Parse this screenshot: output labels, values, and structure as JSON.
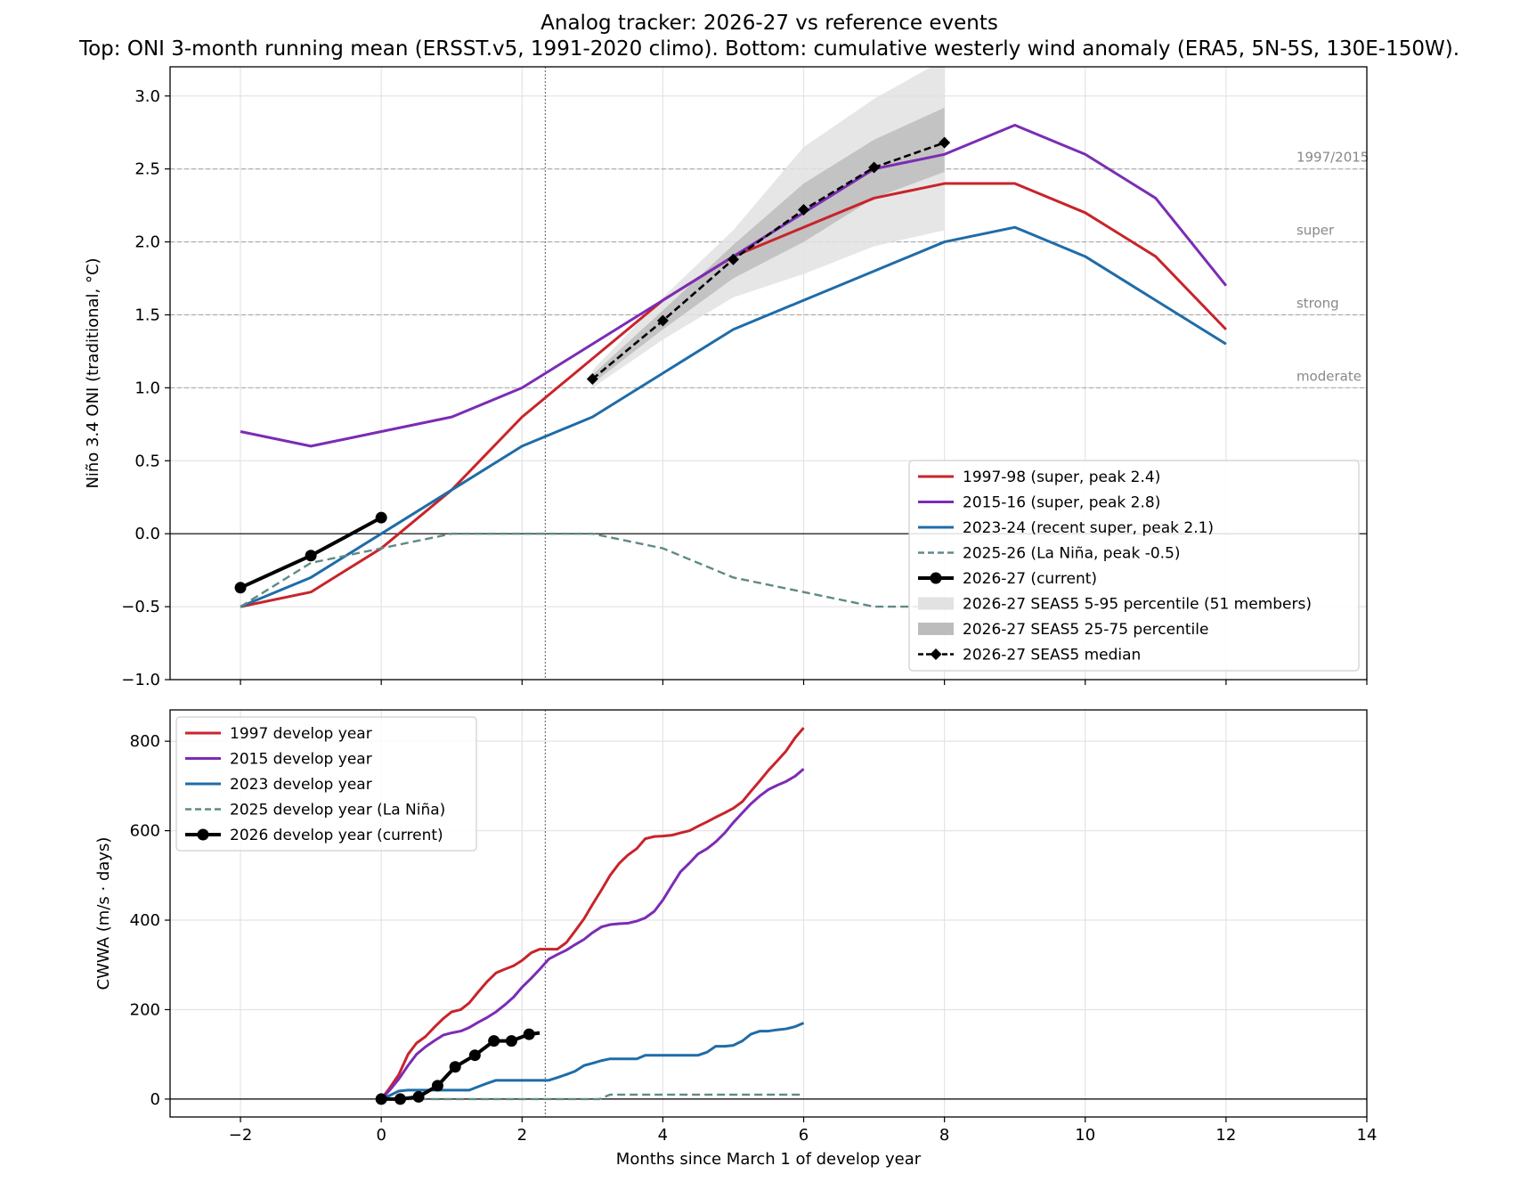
{
  "title": "Analog tracker: 2026-27 vs reference events",
  "subtitle": "Top: ONI 3-month running mean (ERSST.v5, 1991-2020 climo). Bottom: cumulative westerly wind anomaly (ERA5, 5N-5S, 130E-150W).",
  "chart_data": [
    {
      "type": "line",
      "panel": "top",
      "ylabel": "Niño 3.4 ONI (traditional, °C)",
      "xlim": [
        -3,
        14
      ],
      "ylim": [
        -1.0,
        3.2
      ],
      "xticks": [
        -2,
        0,
        2,
        4,
        6,
        8,
        10,
        12,
        14
      ],
      "yticks": [
        -1.0,
        -0.5,
        0.0,
        0.5,
        1.0,
        1.5,
        2.0,
        2.5,
        3.0
      ],
      "grid": true,
      "vline_x": 2.33,
      "thresholds": [
        {
          "y": 1.0,
          "label": "moderate"
        },
        {
          "y": 1.5,
          "label": "strong"
        },
        {
          "y": 2.0,
          "label": "super"
        },
        {
          "y": 2.5,
          "label": "1997/2015"
        }
      ],
      "legend_position": "lower-right",
      "series": [
        {
          "name": "1997-98 (super, peak 2.4)",
          "color": "#c8242b",
          "style": "solid",
          "x": [
            -2,
            -1,
            0,
            1,
            2,
            3,
            4,
            5,
            6,
            7,
            8,
            9,
            10,
            11,
            12
          ],
          "y": [
            -0.5,
            -0.4,
            -0.1,
            0.3,
            0.8,
            1.2,
            1.6,
            1.9,
            2.1,
            2.3,
            2.4,
            2.4,
            2.2,
            1.9,
            1.4
          ]
        },
        {
          "name": "2015-16 (super, peak 2.8)",
          "color": "#7b2cb5",
          "style": "solid",
          "x": [
            -2,
            -1,
            0,
            1,
            2,
            3,
            4,
            5,
            6,
            7,
            8,
            9,
            10,
            11,
            12
          ],
          "y": [
            0.7,
            0.6,
            0.7,
            0.8,
            1.0,
            1.3,
            1.6,
            1.9,
            2.2,
            2.5,
            2.6,
            2.8,
            2.6,
            2.3,
            1.7
          ]
        },
        {
          "name": "2023-24 (recent super, peak 2.1)",
          "color": "#1f6ca8",
          "style": "solid",
          "x": [
            -2,
            -1,
            0,
            1,
            2,
            3,
            4,
            5,
            6,
            7,
            8,
            9,
            10,
            11,
            12
          ],
          "y": [
            -0.5,
            -0.3,
            0.0,
            0.3,
            0.6,
            0.8,
            1.1,
            1.4,
            1.6,
            1.8,
            2.0,
            2.1,
            1.9,
            1.6,
            1.3
          ]
        },
        {
          "name": "2025-26 (La Niña, peak -0.5)",
          "color": "#5f8a86",
          "style": "dashed",
          "x": [
            -2,
            -1,
            0,
            1,
            2,
            3,
            4,
            5,
            6,
            7,
            8
          ],
          "y": [
            -0.5,
            -0.2,
            -0.1,
            0.0,
            0.0,
            0.0,
            -0.1,
            -0.3,
            -0.4,
            -0.5,
            -0.5
          ]
        },
        {
          "name": "2026-27 (current)",
          "color": "#000000",
          "style": "solid-circles",
          "x": [
            -2,
            -1,
            0
          ],
          "y": [
            -0.37,
            -0.15,
            0.11
          ]
        }
      ],
      "bands": [
        {
          "name": "2026-27 SEAS5 5-95 percentile (51 members)",
          "color": "#e2e2e2",
          "x": [
            3,
            4,
            5,
            6,
            7,
            8
          ],
          "lower": [
            1.0,
            1.33,
            1.62,
            1.78,
            1.97,
            2.08
          ],
          "upper": [
            1.12,
            1.62,
            2.08,
            2.65,
            2.98,
            3.25
          ]
        },
        {
          "name": "2026-27 SEAS5 25-75 percentile",
          "color": "#bcbcbc",
          "x": [
            3,
            4,
            5,
            6,
            7,
            8
          ],
          "lower": [
            1.03,
            1.4,
            1.75,
            2.0,
            2.3,
            2.48
          ],
          "upper": [
            1.09,
            1.53,
            1.98,
            2.4,
            2.7,
            2.92
          ]
        }
      ],
      "median": {
        "name": "2026-27 SEAS5 median",
        "color": "#000000",
        "x": [
          3,
          4,
          5,
          6,
          7,
          8
        ],
        "y": [
          1.06,
          1.46,
          1.88,
          2.22,
          2.51,
          2.68
        ]
      }
    },
    {
      "type": "line",
      "panel": "bottom",
      "xlabel": "Months since March 1 of develop year",
      "ylabel": "CWWA (m/s · days)",
      "xlim": [
        -3,
        14
      ],
      "ylim": [
        -40,
        870
      ],
      "xticks": [
        -2,
        0,
        2,
        4,
        6,
        8,
        10,
        12,
        14
      ],
      "yticks": [
        0,
        200,
        400,
        600,
        800
      ],
      "grid": true,
      "vline_x": 2.33,
      "legend_position": "top-left",
      "series": [
        {
          "name": "1997 develop year",
          "color": "#c8242b",
          "style": "solid",
          "x": [
            0,
            0.12,
            0.25,
            0.38,
            0.5,
            0.63,
            0.75,
            0.88,
            1.0,
            1.13,
            1.25,
            1.38,
            1.5,
            1.63,
            1.75,
            1.88,
            2.0,
            2.13,
            2.25,
            2.5,
            2.63,
            2.75,
            2.88,
            3.0,
            3.13,
            3.25,
            3.38,
            3.5,
            3.63,
            3.75,
            3.88,
            4.0,
            4.13,
            4.25,
            4.38,
            4.5,
            4.63,
            4.75,
            4.88,
            5.0,
            5.13,
            5.25,
            5.38,
            5.5,
            5.63,
            5.75,
            5.88,
            6.0
          ],
          "y": [
            0,
            25,
            55,
            100,
            125,
            140,
            160,
            180,
            195,
            200,
            215,
            240,
            262,
            282,
            290,
            298,
            310,
            327,
            335,
            335,
            350,
            375,
            403,
            435,
            468,
            500,
            527,
            545,
            560,
            582,
            587,
            588,
            590,
            595,
            600,
            610,
            620,
            630,
            640,
            650,
            665,
            688,
            712,
            735,
            757,
            778,
            808,
            830
          ]
        },
        {
          "name": "2015 develop year",
          "color": "#7b2cb5",
          "style": "solid",
          "x": [
            0,
            0.12,
            0.25,
            0.38,
            0.5,
            0.63,
            0.75,
            0.88,
            1.0,
            1.13,
            1.25,
            1.38,
            1.5,
            1.63,
            1.75,
            1.88,
            2.0,
            2.13,
            2.25,
            2.38,
            2.5,
            2.63,
            2.75,
            2.88,
            3.0,
            3.13,
            3.25,
            3.38,
            3.5,
            3.63,
            3.75,
            3.88,
            4.0,
            4.13,
            4.25,
            4.38,
            4.5,
            4.63,
            4.75,
            4.88,
            5.0,
            5.13,
            5.25,
            5.38,
            5.5,
            5.63,
            5.75,
            5.88,
            6.0
          ],
          "y": [
            0,
            20,
            45,
            75,
            100,
            117,
            130,
            143,
            148,
            152,
            160,
            172,
            182,
            195,
            210,
            228,
            250,
            270,
            290,
            313,
            323,
            333,
            345,
            357,
            372,
            385,
            390,
            392,
            393,
            398,
            405,
            420,
            445,
            478,
            508,
            528,
            548,
            560,
            575,
            595,
            618,
            640,
            660,
            678,
            692,
            702,
            710,
            722,
            738
          ]
        },
        {
          "name": "2023 develop year",
          "color": "#1f6ca8",
          "style": "solid",
          "x": [
            0,
            0.12,
            0.25,
            0.38,
            0.5,
            0.75,
            1.0,
            1.25,
            1.38,
            1.5,
            1.63,
            1.88,
            2.13,
            2.38,
            2.5,
            2.63,
            2.75,
            2.88,
            3.0,
            3.13,
            3.25,
            3.5,
            3.63,
            3.75,
            4.0,
            4.25,
            4.5,
            4.63,
            4.75,
            4.88,
            5.0,
            5.13,
            5.25,
            5.38,
            5.5,
            5.63,
            5.75,
            5.88,
            6.0
          ],
          "y": [
            0,
            8,
            18,
            20,
            20,
            20,
            20,
            20,
            28,
            35,
            42,
            42,
            42,
            42,
            48,
            55,
            62,
            75,
            80,
            86,
            90,
            90,
            90,
            98,
            98,
            98,
            98,
            105,
            118,
            118,
            120,
            130,
            145,
            152,
            152,
            155,
            157,
            162,
            170
          ]
        },
        {
          "name": "2025 develop year (La Niña)",
          "color": "#5f8a86",
          "style": "dashed",
          "x": [
            0,
            1.0,
            2.0,
            3.1,
            3.25,
            4.0,
            5.0,
            6.0
          ],
          "y": [
            0,
            0,
            0,
            0,
            10,
            10,
            10,
            10
          ]
        },
        {
          "name": "2026 develop year (current)",
          "color": "#000000",
          "style": "solid-circles",
          "x": [
            0,
            0.27,
            0.53,
            0.8,
            1.05,
            1.33,
            1.6,
            1.85,
            2.1,
            2.25
          ],
          "y": [
            0,
            0,
            5,
            30,
            72,
            98,
            130,
            130,
            145,
            148
          ],
          "markers_x": [
            0,
            0.27,
            0.53,
            0.8,
            1.05,
            1.33,
            1.6,
            1.85,
            2.1
          ]
        }
      ]
    }
  ]
}
